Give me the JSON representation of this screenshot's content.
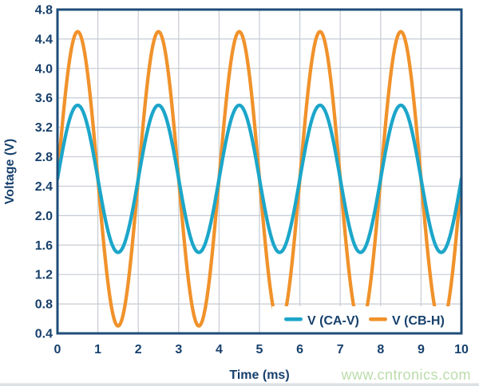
{
  "watermark": "www.cntronics.com",
  "colors": {
    "background": "#FFFFFF",
    "text": "#17406C",
    "border": "#1F4E79",
    "grid": "#C6CCD4",
    "watermark": "#BBDCAC",
    "series_teal": "#1CA6C9",
    "series_orange": "#F0922B"
  },
  "chart_data": {
    "type": "line",
    "title": "",
    "xlabel": "Time (ms)",
    "ylabel": "Voltage (V)",
    "xlim": [
      0,
      10
    ],
    "ylim": [
      0.4,
      4.8
    ],
    "x_ticks": [
      0,
      1,
      2,
      3,
      4,
      5,
      6,
      7,
      8,
      9,
      10
    ],
    "x_tick_labels": [
      "0",
      "1",
      "2",
      "3",
      "4",
      "5",
      "6",
      "7",
      "8",
      "9",
      "10"
    ],
    "y_ticks": [
      0.4,
      0.8,
      1.2,
      1.6,
      2.0,
      2.4,
      2.8,
      3.2,
      3.6,
      4.0,
      4.4,
      4.8
    ],
    "y_tick_labels": [
      "0.4",
      "0.8",
      "1.2",
      "1.6",
      "2.0",
      "2.4",
      "2.8",
      "3.2",
      "3.6",
      "4.0",
      "4.4",
      "4.8"
    ],
    "grid": true,
    "legend_position": "inside-bottom-right",
    "sample_step_ms": 0.02,
    "series": [
      {
        "name": "V (CB-H)",
        "legend_slot": 1,
        "color": "#F0922B",
        "waveform": "sine",
        "mean_v": 2.5,
        "amplitude_v": 2.0,
        "peak_v": 4.5,
        "trough_v": 0.5,
        "period_ms": 2.0,
        "phase_deg": 0
      },
      {
        "name": "V (CA-V)",
        "legend_slot": 0,
        "color": "#1CA6C9",
        "waveform": "sine",
        "mean_v": 2.5,
        "amplitude_v": 1.0,
        "peak_v": 3.5,
        "trough_v": 1.5,
        "period_ms": 2.0,
        "phase_deg": 0
      }
    ]
  }
}
